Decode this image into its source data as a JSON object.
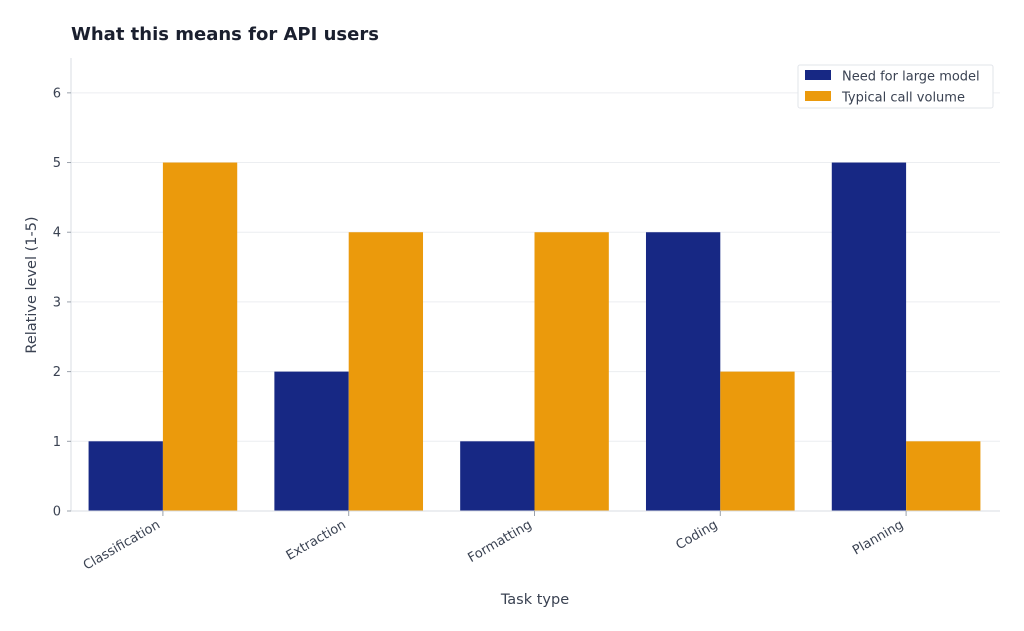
{
  "chart_data": {
    "type": "bar",
    "title": "What this means for API users",
    "xlabel": "Task type",
    "ylabel": "Relative level (1-5)",
    "categories": [
      "Classification",
      "Extraction",
      "Formatting",
      "Coding",
      "Planning"
    ],
    "series": [
      {
        "name": "Need for large model",
        "color": "#172884",
        "values": [
          1,
          2,
          1,
          4,
          5
        ]
      },
      {
        "name": "Typical call volume",
        "color": "#eb9a0c",
        "values": [
          5,
          4,
          4,
          2,
          1
        ]
      }
    ],
    "ylim": [
      0,
      6.5
    ],
    "yticks": [
      0,
      1,
      2,
      3,
      4,
      5,
      6
    ],
    "grid": true,
    "legend_position": "top-right"
  }
}
